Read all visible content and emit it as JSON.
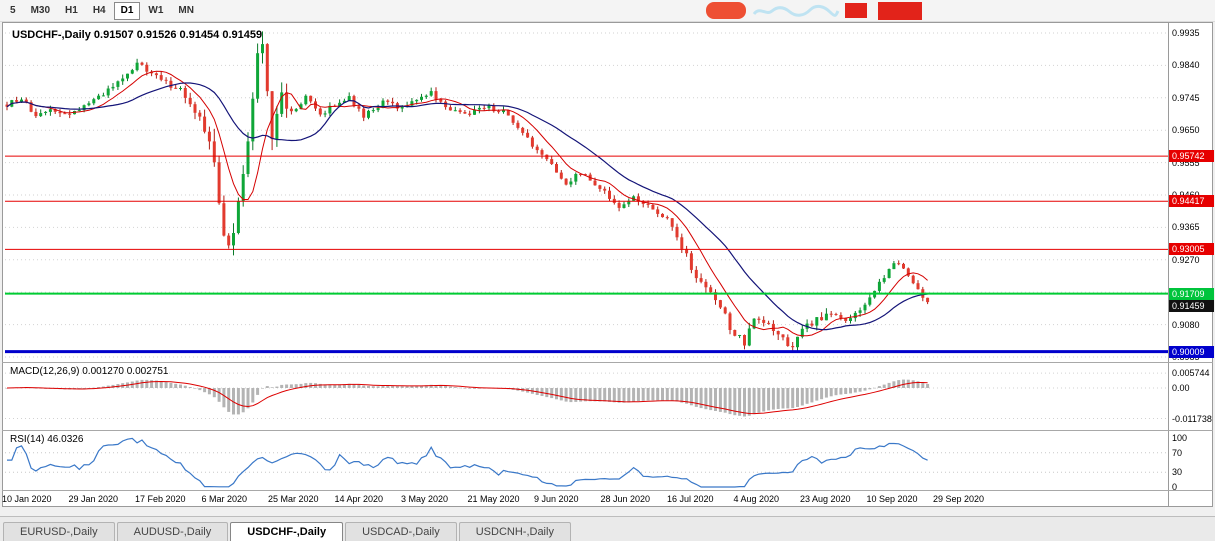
{
  "toolbar": {
    "periods": [
      {
        "label": "5",
        "active": false
      },
      {
        "label": "M30",
        "active": false
      },
      {
        "label": "H1",
        "active": false
      },
      {
        "label": "H4",
        "active": false
      },
      {
        "label": "D1",
        "active": true
      },
      {
        "label": "W1",
        "active": false
      },
      {
        "label": "MN",
        "active": false
      }
    ]
  },
  "overlay": {
    "fragments": [
      {
        "name": "ad-pill",
        "color": "#ee4f33"
      },
      {
        "name": "ad-script",
        "color": "#bfe3f2"
      },
      {
        "name": "ad-box-small",
        "color": "#e2231a"
      },
      {
        "name": "ad-box-large",
        "color": "#e2231a"
      }
    ]
  },
  "chart": {
    "title": "USDCHF-,Daily  0.91507 0.91526 0.91454 0.91459"
  },
  "price_axis": {
    "badges": [
      {
        "text": "0.95742",
        "price": 0.95742,
        "color": "#e60000"
      },
      {
        "text": "0.94417",
        "price": 0.94417,
        "color": "#e60000"
      },
      {
        "text": "0.93005",
        "price": 0.93005,
        "color": "#e60000"
      },
      {
        "text": "0.91709",
        "price": 0.91709,
        "color": "#00c43c"
      },
      {
        "text": "0.91459",
        "price": 0.91459,
        "color": "#111111"
      },
      {
        "text": "0.90009",
        "price": 0.90009,
        "color": "#0000cc"
      }
    ]
  },
  "hlines": [
    {
      "price": 0.95742,
      "color": "#e60000",
      "width": 1
    },
    {
      "price": 0.94417,
      "color": "#e60000",
      "width": 1
    },
    {
      "price": 0.93005,
      "color": "#e60000",
      "width": 1
    },
    {
      "price": 0.91709,
      "color": "#00cc33",
      "width": 2
    },
    {
      "price": 0.90009,
      "color": "#0000cc",
      "width": 3
    }
  ],
  "macd": {
    "header": "MACD(12,26,9) 0.001270 0.002751",
    "labels": [
      {
        "text": "0.005744",
        "value": 0.005744
      },
      {
        "text": "0.00",
        "value": 0
      },
      {
        "text": "-0.011738",
        "value": -0.011738
      }
    ]
  },
  "rsi": {
    "header": "RSI(14) 46.0326",
    "labels": [
      {
        "text": "100",
        "value": 100
      },
      {
        "text": "70",
        "value": 70
      },
      {
        "text": "30",
        "value": 30
      },
      {
        "text": "0",
        "value": 0
      }
    ],
    "levels": [
      70,
      30
    ]
  },
  "dates": [
    "10 Jan 2020",
    "29 Jan 2020",
    "17 Feb 2020",
    "6 Mar 2020",
    "25 Mar 2020",
    "14 Apr 2020",
    "3 May 2020",
    "21 May 2020",
    "9 Jun 2020",
    "28 Jun 2020",
    "16 Jul 2020",
    "4 Aug 2020",
    "23 Aug 2020",
    "10 Sep 2020",
    "29 Sep 2020"
  ],
  "tabs": [
    {
      "label": "EURUSD-,Daily",
      "active": false
    },
    {
      "label": "AUDUSD-,Daily",
      "active": false
    },
    {
      "label": "USDCHF-,Daily",
      "active": true
    },
    {
      "label": "USDCAD-,Daily",
      "active": false
    },
    {
      "label": "USDCNH-,Daily",
      "active": false
    }
  ],
  "chart_data": {
    "type": "candlestick",
    "symbol": "USDCHF",
    "timeframe": "Daily",
    "ohlc_display": {
      "open": "0.91507",
      "high": "0.91526",
      "low": "0.91454",
      "close": "0.91459"
    },
    "y_ticks": [
      0.9935,
      0.984,
      0.9745,
      0.965,
      0.9555,
      0.946,
      0.9365,
      0.927,
      0.9175,
      0.908,
      0.8985
    ],
    "horizontal_levels": [
      0.95742,
      0.94417,
      0.93005,
      0.91709,
      0.90009
    ],
    "current_price": 0.91459,
    "price_path": [
      [
        0,
        0.9725
      ],
      [
        3,
        0.9745
      ],
      [
        6,
        0.9685
      ],
      [
        9,
        0.971
      ],
      [
        13,
        0.9695
      ],
      [
        16,
        0.972
      ],
      [
        20,
        0.9755
      ],
      [
        24,
        0.98
      ],
      [
        27,
        0.9845
      ],
      [
        29,
        0.9825
      ],
      [
        33,
        0.979
      ],
      [
        37,
        0.9755
      ],
      [
        40,
        0.969
      ],
      [
        43,
        0.9555
      ],
      [
        45,
        0.933
      ],
      [
        46,
        0.9295
      ],
      [
        48,
        0.942
      ],
      [
        50,
        0.964
      ],
      [
        52,
        0.987
      ],
      [
        53,
        0.992
      ],
      [
        54,
        0.978
      ],
      [
        55,
        0.964
      ],
      [
        57,
        0.9755
      ],
      [
        59,
        0.97
      ],
      [
        62,
        0.9745
      ],
      [
        65,
        0.9695
      ],
      [
        68,
        0.9725
      ],
      [
        71,
        0.9745
      ],
      [
        74,
        0.969
      ],
      [
        78,
        0.973
      ],
      [
        82,
        0.9715
      ],
      [
        85,
        0.9745
      ],
      [
        88,
        0.976
      ],
      [
        91,
        0.9715
      ],
      [
        95,
        0.9695
      ],
      [
        99,
        0.972
      ],
      [
        103,
        0.9705
      ],
      [
        107,
        0.964
      ],
      [
        110,
        0.959
      ],
      [
        113,
        0.9545
      ],
      [
        116,
        0.9495
      ],
      [
        119,
        0.9525
      ],
      [
        123,
        0.948
      ],
      [
        127,
        0.9425
      ],
      [
        130,
        0.9455
      ],
      [
        134,
        0.9415
      ],
      [
        137,
        0.9385
      ],
      [
        140,
        0.931
      ],
      [
        143,
        0.922
      ],
      [
        146,
        0.917
      ],
      [
        148,
        0.9135
      ],
      [
        150,
        0.907
      ],
      [
        153,
        0.9025
      ],
      [
        155,
        0.9095
      ],
      [
        158,
        0.9075
      ],
      [
        161,
        0.904
      ],
      [
        163,
        0.901
      ],
      [
        165,
        0.907
      ],
      [
        168,
        0.9095
      ],
      [
        171,
        0.9115
      ],
      [
        174,
        0.9085
      ],
      [
        177,
        0.9125
      ],
      [
        180,
        0.918
      ],
      [
        183,
        0.9245
      ],
      [
        185,
        0.9265
      ],
      [
        187,
        0.923
      ],
      [
        189,
        0.9185
      ],
      [
        191,
        0.9146
      ]
    ],
    "indicators": [
      {
        "name": "MACD",
        "params": "12,26,9",
        "values": [
          0.00127,
          0.002751
        ],
        "scale": [
          -0.011738,
          0.005744
        ]
      },
      {
        "name": "RSI",
        "params": "14",
        "value": 46.0326,
        "scale": [
          0,
          100
        ],
        "levels": [
          30,
          70
        ]
      }
    ],
    "x_axis_dates": [
      "10 Jan 2020",
      "29 Jan 2020",
      "17 Feb 2020",
      "6 Mar 2020",
      "25 Mar 2020",
      "14 Apr 2020",
      "3 May 2020",
      "21 May 2020",
      "9 Jun 2020",
      "28 Jun 2020",
      "16 Jul 2020",
      "4 Aug 2020",
      "23 Aug 2020",
      "10 Sep 2020",
      "29 Sep 2020"
    ],
    "colors": {
      "up": "#0fa638",
      "down": "#e23a2e",
      "ma_fast": "#d40000",
      "ma_slow": "#141478",
      "macd_hist": "#b4b4b4",
      "macd_signal": "#dd0000",
      "rsi_line": "#3a78c8"
    }
  }
}
